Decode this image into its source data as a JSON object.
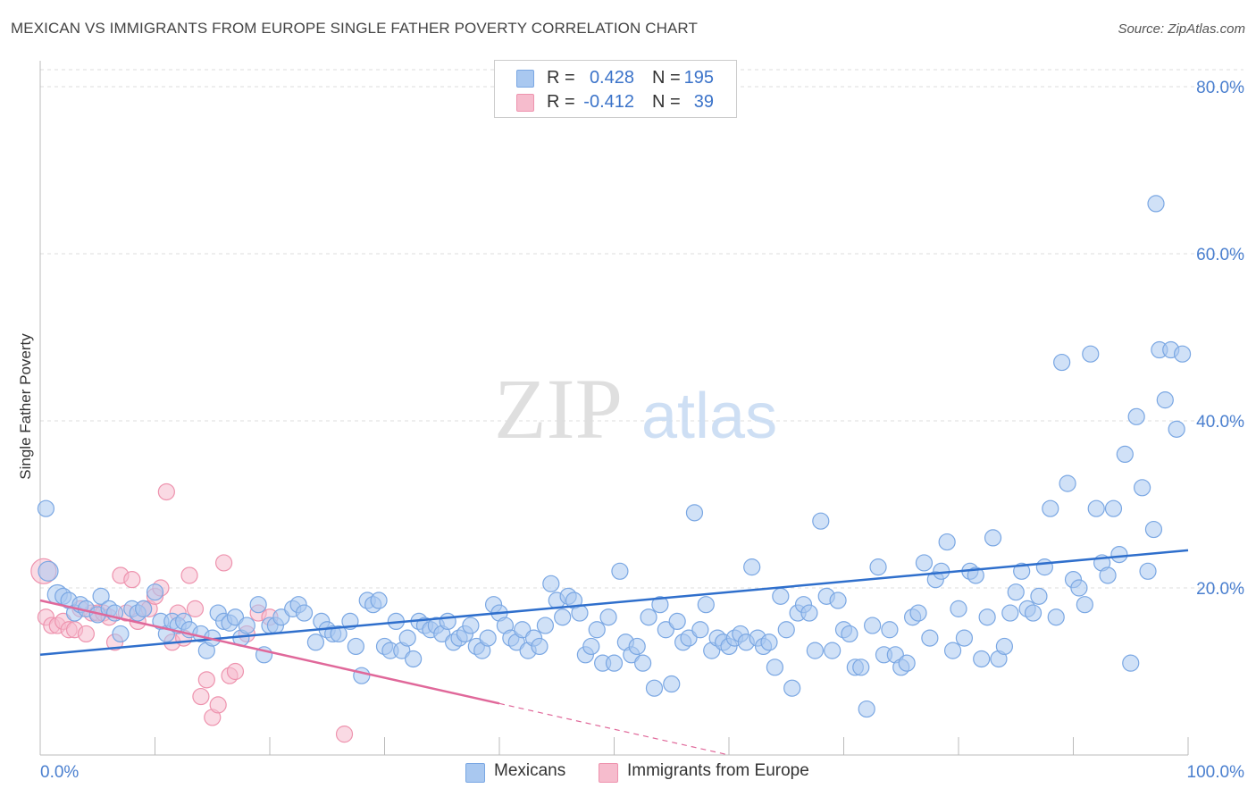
{
  "title": "MEXICAN VS IMMIGRANTS FROM EUROPE SINGLE FATHER POVERTY CORRELATION CHART",
  "source": "Source: ZipAtlas.com",
  "watermark": {
    "zip": "ZIP",
    "atlas": "atlas"
  },
  "colors": {
    "blue_fill": "#a9c8f0",
    "blue_stroke": "#7aa7e3",
    "blue_line": "#2f6fcc",
    "pink_fill": "#f6bccd",
    "pink_stroke": "#ee93ae",
    "pink_line": "#e0689a",
    "tick_text": "#4a7fcf",
    "grid": "#dddddd"
  },
  "legend": {
    "rows": [
      {
        "r_label": "R =",
        "r_value": "0.428",
        "n_label": "N =",
        "n_value": "195",
        "color": "#a9c8f0",
        "stroke": "#7aa7e3"
      },
      {
        "r_label": "R =",
        "r_value": "-0.412",
        "n_label": "N =",
        "n_value": "39",
        "color": "#f6bccd",
        "stroke": "#ee93ae"
      }
    ]
  },
  "bottom_legend": [
    {
      "label": "Mexicans",
      "color": "#a9c8f0",
      "stroke": "#7aa7e3"
    },
    {
      "label": "Immigrants from Europe",
      "color": "#f6bccd",
      "stroke": "#ee93ae"
    }
  ],
  "chart_data": {
    "type": "scatter",
    "title": "MEXICAN VS IMMIGRANTS FROM EUROPE SINGLE FATHER POVERTY CORRELATION CHART",
    "xlabel": "",
    "ylabel": "Single Father Poverty",
    "xlim": [
      0,
      100
    ],
    "ylim": [
      0,
      80
    ],
    "x_tick_labels": [
      "0.0%",
      "100.0%"
    ],
    "y_ticks": [
      20,
      40,
      60,
      80
    ],
    "y_tick_labels": [
      "20.0%",
      "40.0%",
      "60.0%",
      "80.0%"
    ],
    "grid": true,
    "legend_position": "top-center",
    "series": [
      {
        "name": "Mexicans",
        "color": "#a9c8f0",
        "trend": {
          "x0": 0,
          "y0": 12.0,
          "x1": 100,
          "y1": 24.5,
          "dashed_from": null
        },
        "points": [
          [
            0.5,
            29.5
          ],
          [
            0.7,
            22.0
          ],
          [
            1.5,
            19.2
          ],
          [
            2.0,
            19.0
          ],
          [
            2.5,
            18.5
          ],
          [
            3.0,
            17.0
          ],
          [
            3.5,
            18.0
          ],
          [
            4.0,
            17.5
          ],
          [
            5.0,
            16.8
          ],
          [
            5.3,
            19.0
          ],
          [
            6.0,
            17.5
          ],
          [
            6.5,
            17.0
          ],
          [
            7.0,
            14.5
          ],
          [
            8.0,
            17.5
          ],
          [
            8.5,
            17.0
          ],
          [
            9.0,
            17.5
          ],
          [
            10.0,
            19.5
          ],
          [
            10.5,
            16.0
          ],
          [
            11.0,
            14.5
          ],
          [
            11.5,
            16.0
          ],
          [
            12.0,
            15.5
          ],
          [
            12.5,
            16.0
          ],
          [
            13.0,
            15.0
          ],
          [
            14.0,
            14.5
          ],
          [
            14.5,
            12.5
          ],
          [
            15.0,
            14.0
          ],
          [
            15.5,
            17.0
          ],
          [
            16.0,
            16.0
          ],
          [
            16.5,
            15.8
          ],
          [
            17.0,
            16.5
          ],
          [
            17.5,
            14.0
          ],
          [
            18.0,
            15.5
          ],
          [
            19.0,
            18.0
          ],
          [
            19.5,
            12.0
          ],
          [
            20.0,
            15.5
          ],
          [
            20.5,
            15.5
          ],
          [
            21.0,
            16.5
          ],
          [
            22.0,
            17.5
          ],
          [
            22.5,
            18.0
          ],
          [
            23.0,
            17.0
          ],
          [
            24.0,
            13.5
          ],
          [
            24.5,
            16.0
          ],
          [
            25.0,
            15.0
          ],
          [
            25.5,
            14.5
          ],
          [
            26.0,
            14.5
          ],
          [
            27.0,
            16.0
          ],
          [
            27.5,
            13.0
          ],
          [
            28.0,
            9.5
          ],
          [
            28.5,
            18.5
          ],
          [
            29.0,
            18.0
          ],
          [
            29.5,
            18.5
          ],
          [
            30.0,
            13.0
          ],
          [
            30.5,
            12.5
          ],
          [
            31.0,
            16.0
          ],
          [
            31.5,
            12.5
          ],
          [
            32.0,
            14.0
          ],
          [
            32.5,
            11.5
          ],
          [
            33.0,
            16.0
          ],
          [
            33.5,
            15.5
          ],
          [
            34.0,
            15.0
          ],
          [
            34.5,
            15.5
          ],
          [
            35.0,
            14.5
          ],
          [
            35.5,
            16.0
          ],
          [
            36.0,
            13.5
          ],
          [
            36.5,
            14.0
          ],
          [
            37.0,
            14.5
          ],
          [
            37.5,
            15.5
          ],
          [
            38.0,
            13.0
          ],
          [
            38.5,
            12.5
          ],
          [
            39.0,
            14.0
          ],
          [
            39.5,
            18.0
          ],
          [
            40.0,
            17.0
          ],
          [
            40.5,
            15.5
          ],
          [
            41.0,
            14.0
          ],
          [
            41.5,
            13.5
          ],
          [
            42.0,
            15.0
          ],
          [
            42.5,
            12.5
          ],
          [
            43.0,
            14.0
          ],
          [
            43.5,
            13.0
          ],
          [
            44.0,
            15.5
          ],
          [
            44.5,
            20.5
          ],
          [
            45.0,
            18.5
          ],
          [
            45.5,
            16.5
          ],
          [
            46.0,
            19.0
          ],
          [
            46.5,
            18.5
          ],
          [
            47.0,
            17.0
          ],
          [
            47.5,
            12.0
          ],
          [
            48.0,
            13.0
          ],
          [
            48.5,
            15.0
          ],
          [
            49.0,
            11.0
          ],
          [
            49.5,
            16.5
          ],
          [
            50.0,
            11.0
          ],
          [
            50.5,
            22.0
          ],
          [
            51.0,
            13.5
          ],
          [
            51.5,
            12.0
          ],
          [
            52.0,
            13.0
          ],
          [
            52.5,
            11.0
          ],
          [
            53.0,
            16.5
          ],
          [
            53.5,
            8.0
          ],
          [
            54.0,
            18.0
          ],
          [
            54.5,
            15.0
          ],
          [
            55.0,
            8.5
          ],
          [
            55.5,
            16.0
          ],
          [
            56.0,
            13.5
          ],
          [
            56.5,
            14.0
          ],
          [
            57.0,
            29.0
          ],
          [
            57.5,
            15.0
          ],
          [
            58.0,
            18.0
          ],
          [
            58.5,
            12.5
          ],
          [
            59.0,
            14.0
          ],
          [
            59.5,
            13.5
          ],
          [
            60.0,
            13.0
          ],
          [
            60.5,
            14.0
          ],
          [
            61.0,
            14.5
          ],
          [
            61.5,
            13.5
          ],
          [
            62.0,
            22.5
          ],
          [
            62.5,
            14.0
          ],
          [
            63.0,
            13.0
          ],
          [
            63.5,
            13.5
          ],
          [
            64.0,
            10.5
          ],
          [
            64.5,
            19.0
          ],
          [
            65.0,
            15.0
          ],
          [
            65.5,
            8.0
          ],
          [
            66.0,
            17.0
          ],
          [
            66.5,
            18.0
          ],
          [
            67.0,
            17.0
          ],
          [
            67.5,
            12.5
          ],
          [
            68.0,
            28.0
          ],
          [
            68.5,
            19.0
          ],
          [
            69.0,
            12.5
          ],
          [
            69.5,
            18.5
          ],
          [
            70.0,
            15.0
          ],
          [
            70.5,
            14.5
          ],
          [
            71.0,
            10.5
          ],
          [
            71.5,
            10.5
          ],
          [
            72.0,
            5.5
          ],
          [
            72.5,
            15.5
          ],
          [
            73.0,
            22.5
          ],
          [
            73.5,
            12.0
          ],
          [
            74.0,
            15.0
          ],
          [
            74.5,
            12.0
          ],
          [
            75.0,
            10.5
          ],
          [
            75.5,
            11.0
          ],
          [
            76.0,
            16.5
          ],
          [
            76.5,
            17.0
          ],
          [
            77.0,
            23.0
          ],
          [
            77.5,
            14.0
          ],
          [
            78.0,
            21.0
          ],
          [
            78.5,
            22.0
          ],
          [
            79.0,
            25.5
          ],
          [
            79.5,
            12.5
          ],
          [
            80.0,
            17.5
          ],
          [
            80.5,
            14.0
          ],
          [
            81.0,
            22.0
          ],
          [
            81.5,
            21.5
          ],
          [
            82.0,
            11.5
          ],
          [
            82.5,
            16.5
          ],
          [
            83.0,
            26.0
          ],
          [
            83.5,
            11.5
          ],
          [
            84.0,
            13.0
          ],
          [
            84.5,
            17.0
          ],
          [
            85.0,
            19.5
          ],
          [
            85.5,
            22.0
          ],
          [
            86.0,
            17.5
          ],
          [
            86.5,
            17.0
          ],
          [
            87.0,
            19.0
          ],
          [
            87.5,
            22.5
          ],
          [
            88.0,
            29.5
          ],
          [
            88.5,
            16.5
          ],
          [
            89.0,
            47.0
          ],
          [
            89.5,
            32.5
          ],
          [
            90.0,
            21.0
          ],
          [
            90.5,
            20.0
          ],
          [
            91.0,
            18.0
          ],
          [
            91.5,
            48.0
          ],
          [
            92.0,
            29.5
          ],
          [
            92.5,
            23.0
          ],
          [
            93.0,
            21.5
          ],
          [
            93.5,
            29.5
          ],
          [
            94.0,
            24.0
          ],
          [
            94.5,
            36.0
          ],
          [
            95.0,
            11.0
          ],
          [
            95.5,
            40.5
          ],
          [
            96.0,
            32.0
          ],
          [
            96.5,
            22.0
          ],
          [
            97.0,
            27.0
          ],
          [
            97.5,
            48.5
          ],
          [
            98.0,
            42.5
          ],
          [
            98.5,
            48.5
          ],
          [
            99.0,
            39.0
          ],
          [
            97.2,
            66.0
          ],
          [
            99.5,
            48.0
          ]
        ]
      },
      {
        "name": "Immigrants from Europe",
        "color": "#f6bccd",
        "trend": {
          "x0": 0,
          "y0": 18.5,
          "x1": 60,
          "y1": 0,
          "dashed_from": 40
        },
        "points": [
          [
            0.3,
            22.0
          ],
          [
            0.5,
            16.5
          ],
          [
            1.0,
            15.5
          ],
          [
            1.5,
            15.5
          ],
          [
            2.0,
            16.0
          ],
          [
            2.5,
            15.0
          ],
          [
            3.0,
            15.0
          ],
          [
            3.5,
            17.5
          ],
          [
            4.0,
            14.5
          ],
          [
            4.5,
            17.0
          ],
          [
            5.0,
            17.0
          ],
          [
            5.5,
            17.0
          ],
          [
            6.0,
            16.5
          ],
          [
            6.5,
            13.5
          ],
          [
            7.0,
            21.5
          ],
          [
            7.5,
            17.0
          ],
          [
            8.0,
            21.0
          ],
          [
            8.5,
            16.0
          ],
          [
            9.0,
            17.5
          ],
          [
            9.5,
            17.5
          ],
          [
            10.0,
            19.0
          ],
          [
            10.5,
            20.0
          ],
          [
            11.0,
            31.5
          ],
          [
            11.5,
            13.5
          ],
          [
            12.0,
            17.0
          ],
          [
            12.5,
            14.0
          ],
          [
            13.0,
            21.5
          ],
          [
            13.5,
            17.5
          ],
          [
            14.0,
            7.0
          ],
          [
            14.5,
            9.0
          ],
          [
            15.0,
            4.5
          ],
          [
            15.5,
            6.0
          ],
          [
            16.0,
            23.0
          ],
          [
            16.5,
            9.5
          ],
          [
            17.0,
            10.0
          ],
          [
            18.0,
            14.5
          ],
          [
            19.0,
            17.0
          ],
          [
            20.0,
            16.5
          ],
          [
            26.5,
            2.5
          ]
        ]
      }
    ]
  }
}
